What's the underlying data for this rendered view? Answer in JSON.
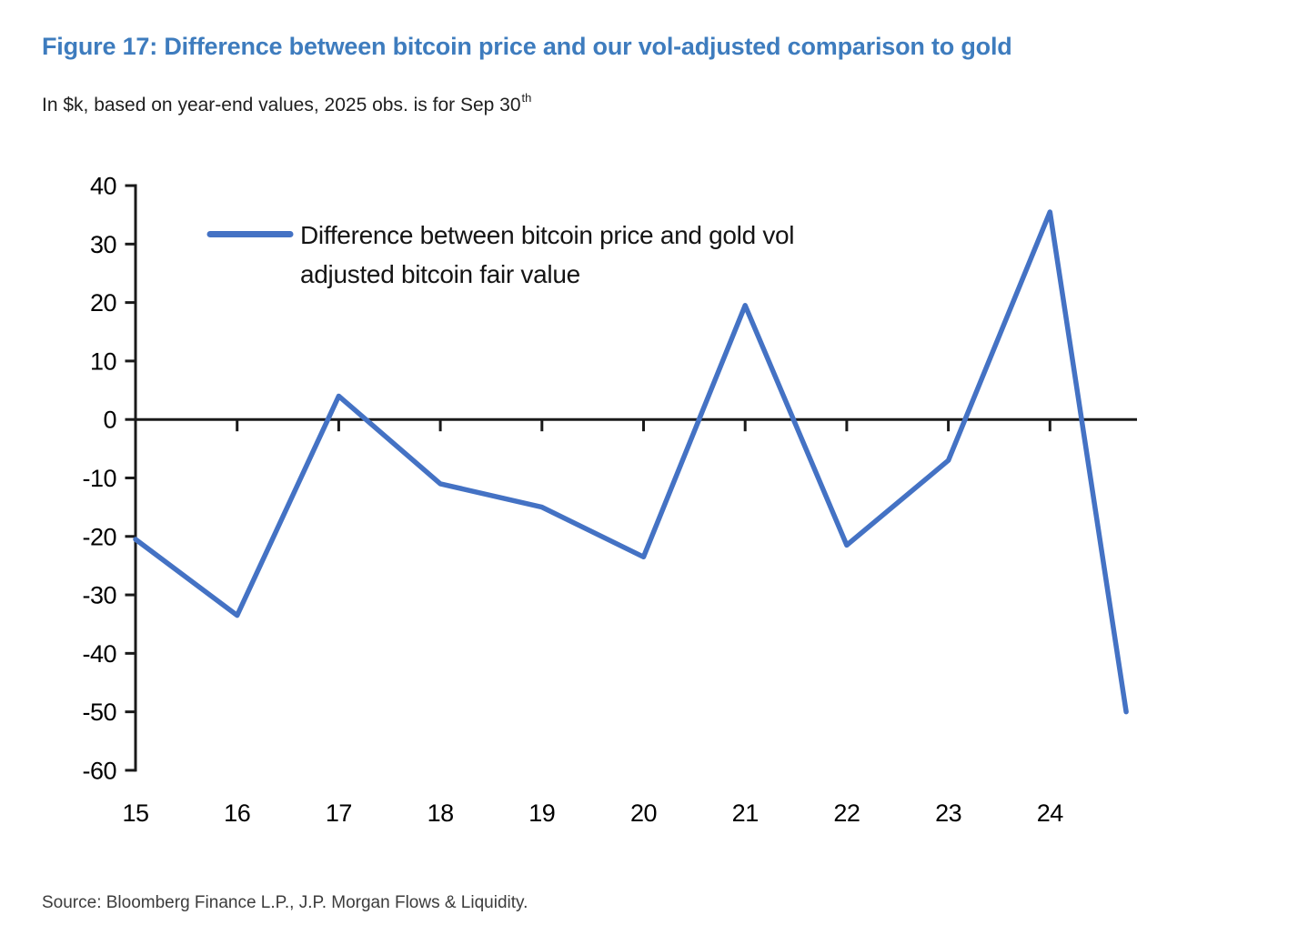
{
  "page": {
    "title": "Figure 17: Difference between bitcoin price and our vol-adjusted comparison to gold",
    "subtitle": "In $k, based on year-end values, 2025 obs. is for Sep 30",
    "subtitle_superscript": "th",
    "source": "Source: Bloomberg Finance L.P., J.P. Morgan Flows & Liquidity."
  },
  "colors": {
    "title_blue": "#3e7cbe",
    "line_blue": "#4472c4",
    "axis_black": "#1a1a1a",
    "source_gray": "#3c3c3c"
  },
  "chart_data": {
    "type": "line",
    "title": "",
    "xlabel": "",
    "ylabel": "",
    "units": "$k",
    "grid": false,
    "ylim": [
      -60,
      40
    ],
    "y_ticks": [
      40,
      30,
      20,
      10,
      0,
      -10,
      -20,
      -30,
      -40,
      -50,
      -60
    ],
    "x_tick_labels": [
      "15",
      "16",
      "17",
      "18",
      "19",
      "20",
      "21",
      "22",
      "23",
      "24"
    ],
    "x_tick_values": [
      15,
      16,
      17,
      18,
      19,
      20,
      21,
      22,
      23,
      24
    ],
    "legend": {
      "label": "Difference between bitcoin price and gold vol adjusted bitcoin fair value",
      "label_lines": [
        "Difference between bitcoin price and gold vol",
        "adjusted bitcoin fair value"
      ],
      "position": "top-left inside plot"
    },
    "series": [
      {
        "name": "Difference between bitcoin price and gold vol adjusted bitcoin fair value",
        "points": [
          {
            "x": 15,
            "label": "2015",
            "y": -20.5
          },
          {
            "x": 16,
            "label": "2016",
            "y": -33.5
          },
          {
            "x": 17,
            "label": "2017",
            "y": 4
          },
          {
            "x": 18,
            "label": "2018",
            "y": -11
          },
          {
            "x": 19,
            "label": "2019",
            "y": -15
          },
          {
            "x": 20,
            "label": "2020",
            "y": -23.5
          },
          {
            "x": 21,
            "label": "2021",
            "y": 19.5
          },
          {
            "x": 22,
            "label": "2022",
            "y": -21.5
          },
          {
            "x": 23,
            "label": "2023",
            "y": -7
          },
          {
            "x": 24,
            "label": "2024",
            "y": 35.5
          },
          {
            "x": 24.75,
            "label": "2025 (Sep 30)",
            "y": -50
          }
        ]
      }
    ]
  }
}
